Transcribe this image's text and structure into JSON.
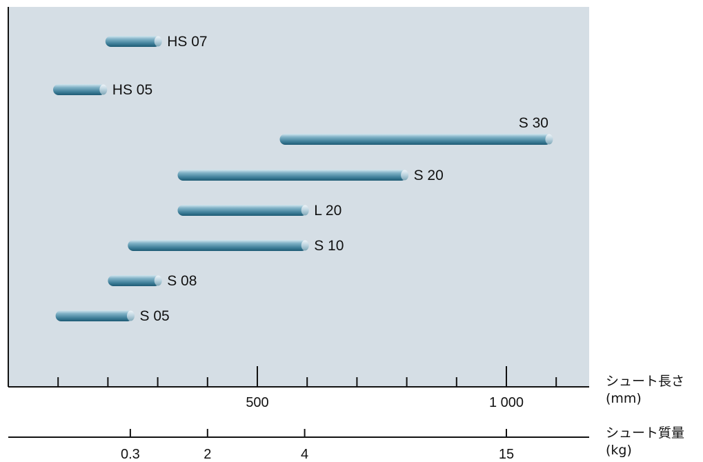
{
  "chart_data": {
    "type": "range-bar",
    "colors": {
      "plot_background": "#d5dee5",
      "bar": "#4a8aa3",
      "axis": "#111111"
    },
    "bars": [
      {
        "name": "HS 07",
        "start": 195,
        "end": 305,
        "label_side": "right"
      },
      {
        "name": "HS 05",
        "start": 90,
        "end": 195,
        "label_side": "right"
      },
      {
        "name": "S 30",
        "start": 545,
        "end": 1090,
        "label_side": "above"
      },
      {
        "name": "S 20",
        "start": 340,
        "end": 800,
        "label_side": "right"
      },
      {
        "name": "L 20",
        "start": 340,
        "end": 600,
        "label_side": "right"
      },
      {
        "name": "S 10",
        "start": 240,
        "end": 600,
        "label_side": "right"
      },
      {
        "name": "S 08",
        "start": 200,
        "end": 305,
        "label_side": "right"
      },
      {
        "name": "S 05",
        "start": 95,
        "end": 250,
        "label_side": "right"
      }
    ],
    "length_axis": {
      "label": "シュート長さ",
      "unit": "(mm)",
      "range": [
        0,
        1160
      ],
      "major_ticks": [
        500,
        1000
      ],
      "minor_ticks": [
        100,
        200,
        300,
        400,
        600,
        700,
        800,
        900,
        1100
      ],
      "tick_labels": [
        {
          "value": 500,
          "text": "500"
        },
        {
          "value": 1000,
          "text": "1 000"
        }
      ]
    },
    "mass_axis": {
      "label": "シュート質量",
      "unit": "(kg)",
      "ticks": [
        {
          "length_mm": 245,
          "text": "0.3"
        },
        {
          "length_mm": 400,
          "text": "2"
        },
        {
          "length_mm": 595,
          "text": "4"
        },
        {
          "length_mm": 1000,
          "text": "15"
        }
      ]
    }
  }
}
